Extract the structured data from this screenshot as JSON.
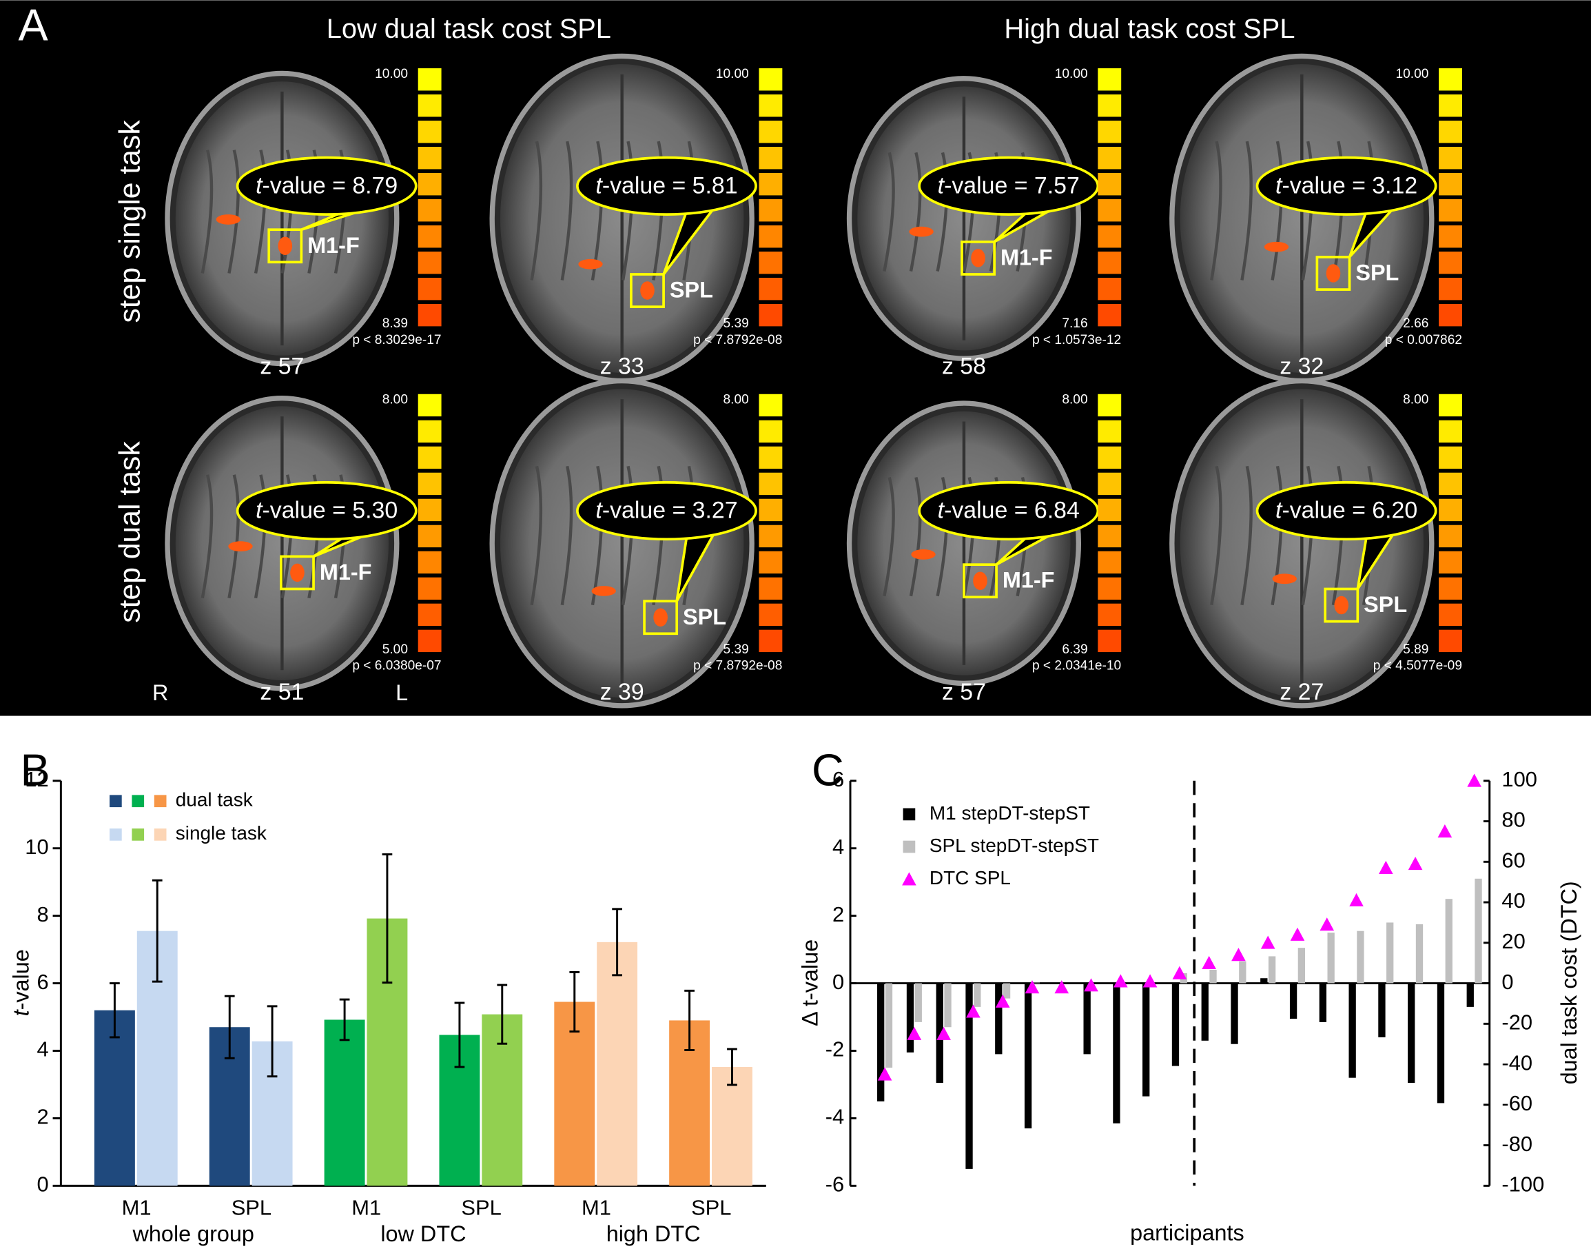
{
  "panel_labels": [
    "A",
    "B",
    "C"
  ],
  "panel_a": {
    "titles": [
      "Low dual task cost SPL",
      "High dual task cost SPL"
    ],
    "rows": [
      "step single task",
      "step dual task"
    ],
    "orientation": [
      "R",
      "L"
    ],
    "panels": [
      {
        "t": [
          "t",
          "-value = 8.79"
        ],
        "region": "M1-F",
        "max": "10.00",
        "min": "8.39",
        "p": "p < 8.3029e-17",
        "slice": "z 57"
      },
      {
        "t": [
          "t",
          "-value = 5.81"
        ],
        "region": "SPL",
        "max": "10.00",
        "min": "5.39",
        "p": "p < 7.8792e-08",
        "slice": "z 33"
      },
      {
        "t": [
          "t",
          "-value = 7.57"
        ],
        "region": "M1-F",
        "max": "10.00",
        "min": "7.16",
        "p": "p < 1.0573e-12",
        "slice": "z 58"
      },
      {
        "t": [
          "t",
          "-value = 3.12"
        ],
        "region": "SPL",
        "max": "10.00",
        "min": "2.66",
        "p": "p < 0.007862",
        "slice": "z 32"
      },
      {
        "t": [
          "t",
          "-value = 5.30"
        ],
        "region": "M1-F",
        "max": "8.00",
        "min": "5.00",
        "p": "p < 6.0380e-07",
        "slice": "z 51"
      },
      {
        "t": [
          "t",
          "-value = 3.27"
        ],
        "region": "SPL",
        "max": "8.00",
        "min": "5.39",
        "p": "p < 7.8792e-08",
        "slice": "z 39"
      },
      {
        "t": [
          "t",
          "-value = 6.84"
        ],
        "region": "M1-F",
        "max": "8.00",
        "min": "6.39",
        "p": "p < 2.0341e-10",
        "slice": "z 57"
      },
      {
        "t": [
          "t",
          "-value = 6.20"
        ],
        "region": "SPL",
        "max": "8.00",
        "min": "5.89",
        "p": "p < 4.5077e-09",
        "slice": "z 27"
      }
    ]
  },
  "chart_data": [
    {
      "type": "bar",
      "y_label": [
        "t",
        "-value"
      ],
      "categories": [
        "M1",
        "SPL",
        "M1",
        "SPL",
        "M1",
        "SPL"
      ],
      "groups": [
        "whole group",
        "low DTC",
        "high DTC"
      ],
      "series": [
        {
          "name": "dual task",
          "colors": [
            "#1f497d",
            "#1f497d",
            "#00b050",
            "#00b050",
            "#f79646",
            "#f79646"
          ],
          "values": [
            5.2,
            4.7,
            4.92,
            4.47,
            5.45,
            4.9
          ],
          "errors": [
            0.8,
            0.92,
            0.6,
            0.95,
            0.88,
            0.88
          ]
        },
        {
          "name": "single task",
          "colors": [
            "#c6d9f1",
            "#c6d9f1",
            "#92d050",
            "#92d050",
            "#fcd5b5",
            "#fcd5b5"
          ],
          "values": [
            7.55,
            4.28,
            7.92,
            5.08,
            7.22,
            3.52
          ],
          "errors": [
            1.5,
            1.04,
            1.9,
            0.87,
            0.98,
            0.53
          ]
        }
      ],
      "ylim": [
        0,
        12
      ],
      "yticks": [
        0,
        2,
        4,
        6,
        8,
        10,
        12
      ]
    },
    {
      "type": "bar",
      "y_label": "Δ t-value",
      "y2_label": "dual task cost (DTC)",
      "x_label": "participants",
      "categories": [
        null,
        null,
        null,
        null,
        null,
        null,
        null,
        null,
        null,
        null,
        null,
        null,
        null,
        null,
        null,
        null,
        null,
        null,
        null,
        null,
        null
      ],
      "series": [
        {
          "name": "M1 stepDT-stepST",
          "color": "#000000",
          "values": [
            -3.5,
            -2.05,
            -2.95,
            -5.5,
            -2.1,
            -4.3,
            0,
            -2.1,
            -4.15,
            -3.35,
            -2.45,
            -1.7,
            -1.8,
            0.15,
            -1.05,
            -1.15,
            -2.8,
            -1.6,
            -2.95,
            -3.55,
            -0.7
          ]
        },
        {
          "name": "SPL stepDT-stepST",
          "color": "#bfbfbf",
          "values": [
            -2.5,
            -1.15,
            -1.3,
            -0.7,
            -0.45,
            0.02,
            0,
            0,
            0,
            0,
            0.3,
            0.4,
            0.65,
            0.8,
            1.05,
            1.5,
            1.55,
            1.8,
            1.75,
            2.5,
            3.1
          ]
        },
        {
          "name": "DTC SPL",
          "color": "#ff00ff",
          "type": "scatter",
          "marker": "triangle",
          "axis": "y2",
          "values": [
            -45,
            -25,
            -25,
            -14,
            -9,
            -2,
            -2,
            -1,
            1,
            1,
            5,
            10,
            14,
            20,
            24,
            29,
            41,
            57,
            59,
            75,
            100
          ]
        }
      ],
      "ylim": [
        -6,
        6
      ],
      "yticks": [
        -6,
        -4,
        -2,
        0,
        2,
        4,
        6
      ],
      "y2lim": [
        -100,
        100
      ],
      "y2ticks": [
        -100,
        -80,
        -60,
        -40,
        -20,
        0,
        20,
        40,
        60,
        80,
        100
      ]
    }
  ]
}
